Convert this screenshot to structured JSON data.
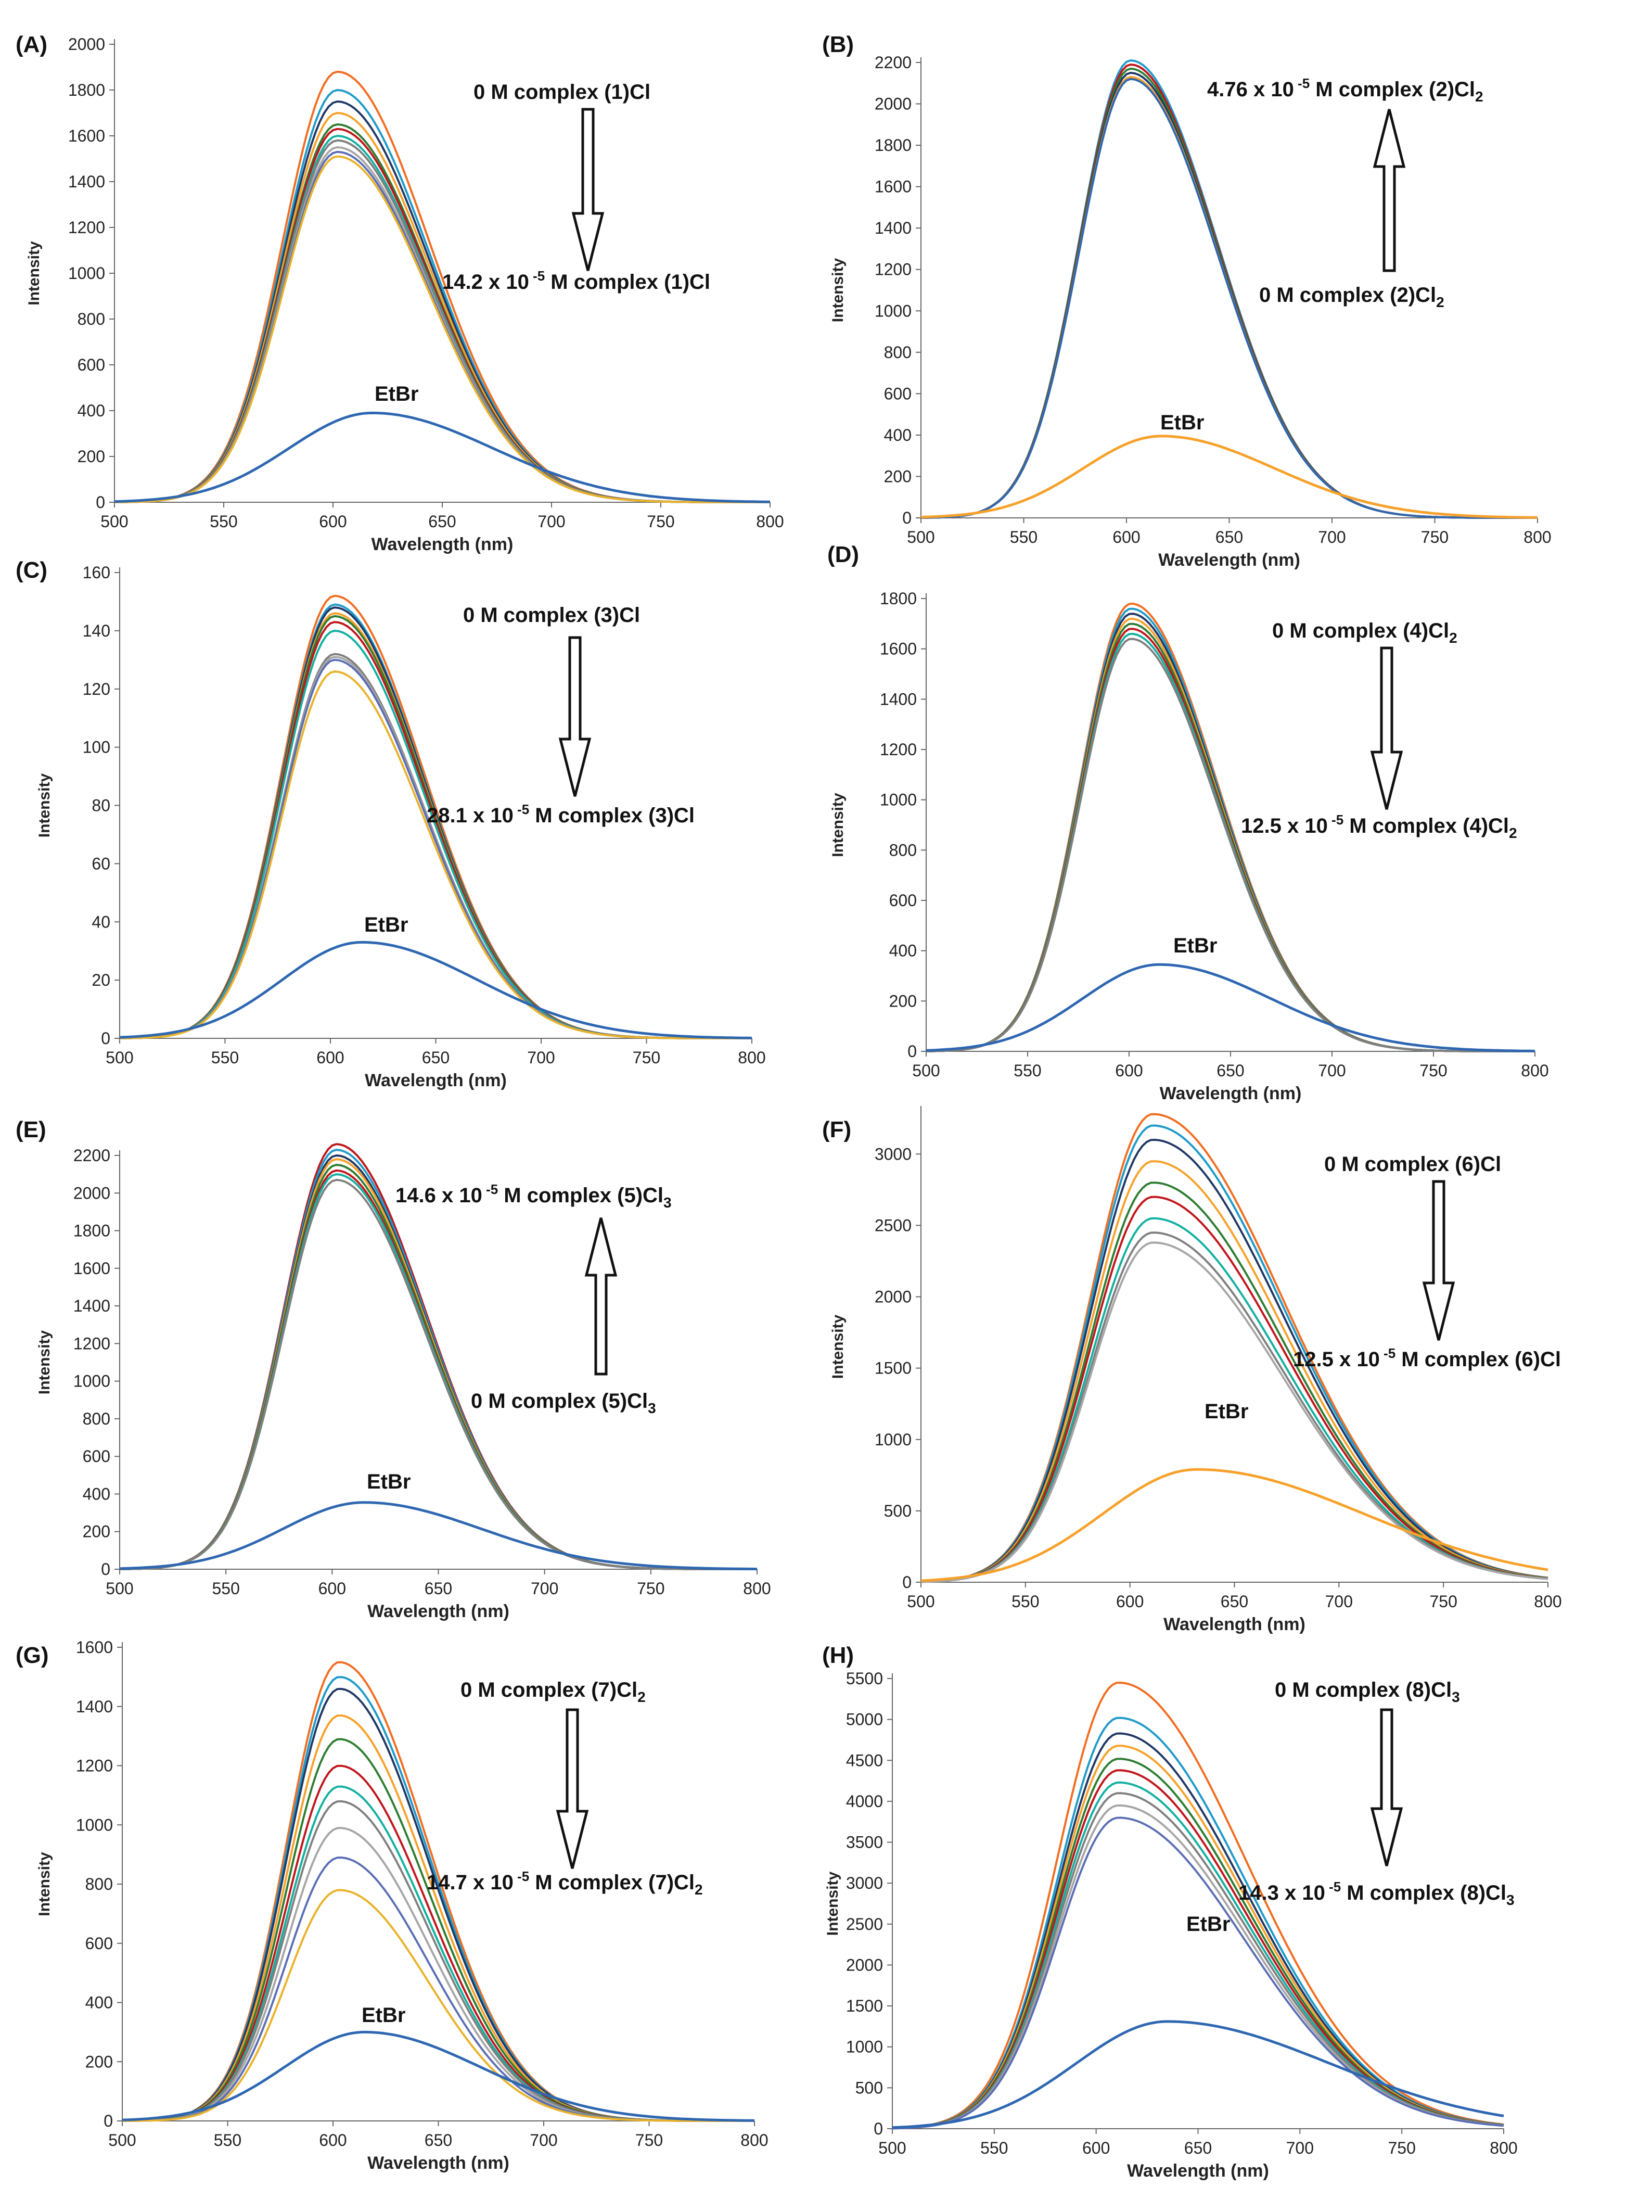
{
  "figure": {
    "panels": [
      {
        "id": "A",
        "label": "(A)",
        "ylim": [
          0,
          2000
        ],
        "yticks": [
          0,
          200,
          400,
          600,
          800,
          1000,
          1200,
          1400,
          1600,
          1800,
          2000
        ],
        "annotations": [
          {
            "kind": "conc",
            "value": "0 M",
            "text": "complex",
            "formula": "(1)Cl",
            "sub": ""
          },
          {
            "kind": "conc",
            "value": "14.2 x 10",
            "exp": "-5",
            "unit": " M",
            "text": "complex",
            "formula": "(1)Cl",
            "sub": ""
          },
          {
            "kind": "etbr",
            "text": "EtBr"
          }
        ],
        "arrow": "down"
      },
      {
        "id": "B",
        "label": "(B)",
        "ylim": [
          0,
          2200
        ],
        "yticks": [
          0,
          200,
          400,
          600,
          800,
          1000,
          1200,
          1400,
          1600,
          1800,
          2000,
          2200
        ],
        "annotations": [
          {
            "kind": "conc",
            "value": "4.76 x 10",
            "exp": "-5",
            "unit": " M",
            "text": "complex",
            "formula": "(2)Cl",
            "sub": "2"
          },
          {
            "kind": "conc",
            "value": "0 M",
            "text": "complex",
            "formula": "(2)Cl",
            "sub": "2"
          },
          {
            "kind": "etbr",
            "text": "EtBr"
          }
        ],
        "arrow": "up"
      },
      {
        "id": "C",
        "label": "(C)",
        "ylim": [
          0,
          160
        ],
        "yticks": [
          0,
          20,
          40,
          60,
          80,
          100,
          120,
          140,
          160
        ],
        "annotations": [
          {
            "kind": "conc",
            "value": "0 M",
            "text": "complex",
            "formula": "(3)Cl",
            "sub": ""
          },
          {
            "kind": "conc",
            "value": "28.1 x 10",
            "exp": "-5",
            "unit": " M",
            "text": "complex",
            "formula": "(3)Cl",
            "sub": ""
          },
          {
            "kind": "etbr",
            "text": "EtBr"
          }
        ],
        "arrow": "down"
      },
      {
        "id": "D",
        "label": "(D)",
        "ylim": [
          0,
          1800
        ],
        "yticks": [
          0,
          200,
          400,
          600,
          800,
          1000,
          1200,
          1400,
          1600,
          1800
        ],
        "annotations": [
          {
            "kind": "conc",
            "value": "0 M",
            "text": "complex",
            "formula": "(4)Cl",
            "sub": "2"
          },
          {
            "kind": "conc",
            "value": "12.5 x 10",
            "exp": "-5",
            "unit": " M",
            "text": "complex",
            "formula": "(4)Cl",
            "sub": "2"
          },
          {
            "kind": "etbr",
            "text": "EtBr"
          }
        ],
        "arrow": "down"
      },
      {
        "id": "E",
        "label": "(E)",
        "ylim": [
          0,
          2200
        ],
        "yticks": [
          0,
          200,
          400,
          600,
          800,
          1000,
          1200,
          1400,
          1600,
          1800,
          2000,
          2200
        ],
        "annotations": [
          {
            "kind": "conc",
            "value": "14.6 x 10",
            "exp": "-5",
            "unit": " M",
            "text": "complex",
            "formula": "(5)Cl",
            "sub": "3"
          },
          {
            "kind": "conc",
            "value": "0 M",
            "text": "complex",
            "formula": "(5)Cl",
            "sub": "3"
          },
          {
            "kind": "etbr",
            "text": "EtBr"
          }
        ],
        "arrow": "up"
      },
      {
        "id": "F",
        "label": "(F)",
        "ylim": [
          0,
          3300
        ],
        "yticks": [
          0,
          500,
          1000,
          1500,
          2000,
          2500,
          3000
        ],
        "annotations": [
          {
            "kind": "conc",
            "value": "0 M",
            "text": "complex",
            "formula": "(6)Cl",
            "sub": ""
          },
          {
            "kind": "conc",
            "value": "12.5 x 10",
            "exp": "-5",
            "unit": " M",
            "text": "complex",
            "formula": "(6)Cl",
            "sub": ""
          },
          {
            "kind": "etbr",
            "text": "EtBr"
          }
        ],
        "arrow": "down"
      },
      {
        "id": "G",
        "label": "(G)",
        "ylim": [
          0,
          1600
        ],
        "yticks": [
          0,
          200,
          400,
          600,
          800,
          1000,
          1200,
          1400,
          1600
        ],
        "annotations": [
          {
            "kind": "conc",
            "value": "0 M",
            "text": "complex",
            "formula": "(7)Cl",
            "sub": "2"
          },
          {
            "kind": "conc",
            "value": "14.7 x 10",
            "exp": "-5",
            "unit": " M",
            "text": "complex",
            "formula": "(7)Cl",
            "sub": "2"
          },
          {
            "kind": "etbr",
            "text": "EtBr"
          }
        ],
        "arrow": "down"
      },
      {
        "id": "H",
        "label": "(H)",
        "ylim": [
          0,
          5500
        ],
        "yticks": [
          0,
          500,
          1000,
          1500,
          2000,
          2500,
          3000,
          3500,
          4000,
          4500,
          5000,
          5500
        ],
        "annotations": [
          {
            "kind": "conc",
            "value": "0 M",
            "text": "complex",
            "formula": "(8)Cl",
            "sub": "3"
          },
          {
            "kind": "conc",
            "value": "14.3 x 10",
            "exp": "-5",
            "unit": " M",
            "text": "complex",
            "formula": "(8)Cl",
            "sub": "3"
          },
          {
            "kind": "etbr",
            "text": "EtBr"
          }
        ],
        "arrow": "down"
      }
    ],
    "xlabel": "Wavelength  (nm)",
    "ylabel": "Intensity",
    "xticks": [
      500,
      550,
      600,
      650,
      700,
      750,
      800
    ],
    "colors": {
      "etbr_blue": "#2e67b1",
      "etbr_orange": "#f7a12a",
      "palette": [
        "#f26d21",
        "#1f9ac9",
        "#203864",
        "#f7a12a",
        "#2e7d32",
        "#c0161c",
        "#12b0a0",
        "#7f7f7f",
        "#a6a6a6",
        "#5b6eb5",
        "#e9b22a",
        "#c8c8c8"
      ]
    }
  },
  "chart_data": [
    {
      "panel": "A",
      "type": "line",
      "xlabel": "Wavelength  (nm)",
      "ylabel": "Intensity",
      "xlim": [
        500,
        800
      ],
      "ylim": [
        0,
        2000
      ],
      "series_peaks": [
        1880,
        1800,
        1750,
        1700,
        1650,
        1630,
        1600,
        1580,
        1550,
        1530,
        1510
      ],
      "peak_x": 602,
      "etbr": {
        "peak_x": 618,
        "peak_y": 390
      }
    },
    {
      "panel": "B",
      "type": "line",
      "xlabel": "Wavelength  (nm)",
      "ylabel": "Intensity",
      "xlim": [
        500,
        800
      ],
      "ylim": [
        0,
        2200
      ],
      "series_peaks": [
        2210,
        2190,
        2170,
        2150,
        2130,
        2120
      ],
      "peak_x": 602,
      "etbr": {
        "peak_x": 617,
        "peak_y": 395
      }
    },
    {
      "panel": "C",
      "type": "line",
      "xlabel": "Wavelength  (nm)",
      "ylabel": "Intensity",
      "xlim": [
        500,
        800
      ],
      "ylim": [
        0,
        160
      ],
      "series_peaks": [
        152,
        149,
        148,
        146,
        145,
        143,
        140,
        132,
        131,
        130,
        126
      ],
      "peak_x": 602,
      "etbr": {
        "peak_x": 615,
        "peak_y": 33
      }
    },
    {
      "panel": "D",
      "type": "line",
      "xlabel": "Wavelength  (nm)",
      "ylabel": "Intensity",
      "xlim": [
        500,
        800
      ],
      "ylim": [
        0,
        1800
      ],
      "series_peaks": [
        1780,
        1760,
        1740,
        1720,
        1700,
        1680,
        1660,
        1640
      ],
      "peak_x": 601,
      "etbr": {
        "peak_x": 615,
        "peak_y": 345
      }
    },
    {
      "panel": "E",
      "type": "line",
      "xlabel": "Wavelength  (nm)",
      "ylabel": "Intensity",
      "xlim": [
        500,
        800
      ],
      "ylim": [
        0,
        2200
      ],
      "series_peaks": [
        2260,
        2230,
        2200,
        2180,
        2150,
        2120,
        2100,
        2070
      ],
      "peak_x": 602,
      "etbr": {
        "peak_x": 615,
        "peak_y": 355
      }
    },
    {
      "panel": "F",
      "type": "line",
      "xlabel": "Wavelength  (nm)",
      "ylabel": "Intensity",
      "xlim": [
        500,
        800
      ],
      "ylim": [
        0,
        3300
      ],
      "series_peaks": [
        3280,
        3200,
        3100,
        2950,
        2800,
        2700,
        2550,
        2450,
        2380
      ],
      "peak_x": 611,
      "etbr": {
        "peak_x": 632,
        "peak_y": 790
      }
    },
    {
      "panel": "G",
      "type": "line",
      "xlabel": "Wavelength  (nm)",
      "ylabel": "Intensity",
      "xlim": [
        500,
        800
      ],
      "ylim": [
        0,
        1600
      ],
      "series_peaks": [
        1550,
        1500,
        1460,
        1370,
        1290,
        1200,
        1130,
        1080,
        990,
        890,
        780
      ],
      "peak_x": 603,
      "etbr": {
        "peak_x": 615,
        "peak_y": 300
      }
    },
    {
      "panel": "H",
      "type": "line",
      "xlabel": "Wavelength  (nm)",
      "ylabel": "Intensity",
      "xlim": [
        500,
        800
      ],
      "ylim": [
        0,
        5500
      ],
      "series_peaks": [
        5450,
        5020,
        4830,
        4680,
        4520,
        4380,
        4230,
        4100,
        3950,
        3800
      ],
      "peak_x": 611,
      "etbr": {
        "peak_x": 635,
        "peak_y": 1310
      }
    }
  ]
}
